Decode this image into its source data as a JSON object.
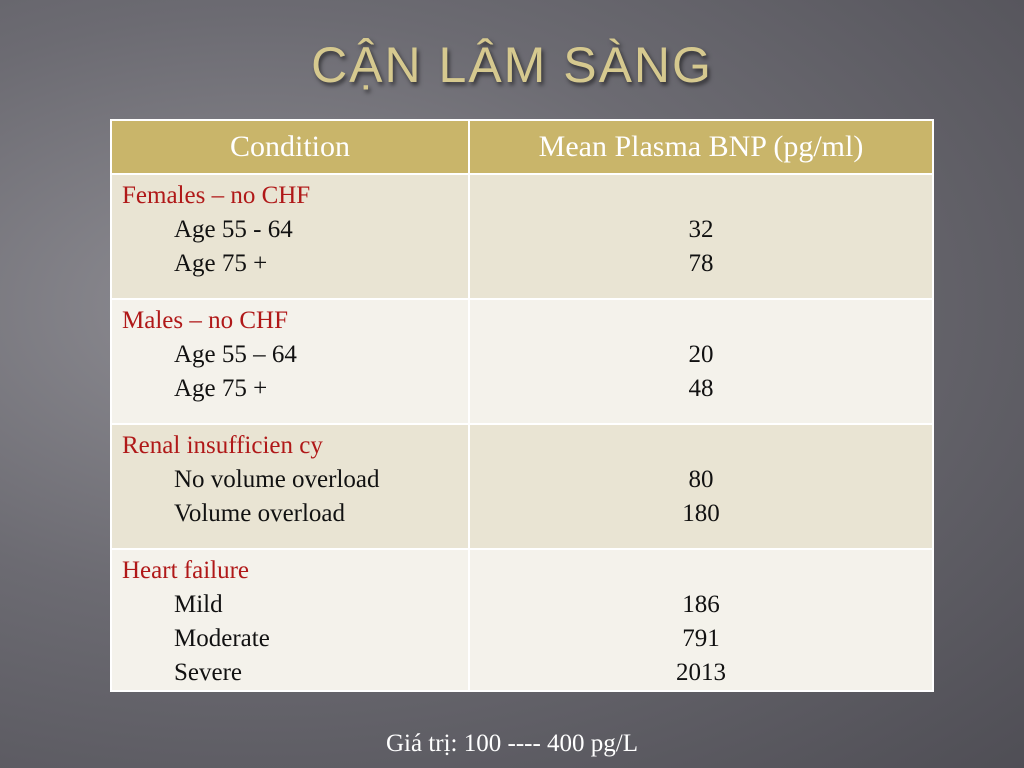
{
  "title": "CẬN LÂM SÀNG",
  "table": {
    "headers": [
      "Condition",
      "Mean Plasma BNP (pg/ml)"
    ],
    "rows": [
      {
        "group": "Females – no CHF",
        "subs": [
          "Age 55 - 64",
          "Age 75 +"
        ],
        "values": [
          "32",
          "78"
        ]
      },
      {
        "group": "Males – no CHF",
        "subs": [
          "Age 55 – 64",
          "Age 75 +"
        ],
        "values": [
          "20",
          "48"
        ]
      },
      {
        "group": "Renal insufficien cy",
        "subs": [
          "No volume overload",
          "Volume overload"
        ],
        "values": [
          "80",
          "180"
        ]
      },
      {
        "group": "Heart failure",
        "subs": [
          "Mild",
          "Moderate",
          "Severe"
        ],
        "values": [
          "186",
          "791",
          "2013"
        ]
      }
    ]
  },
  "footer": "Giá trị:  100 ---- 400 pg/L"
}
